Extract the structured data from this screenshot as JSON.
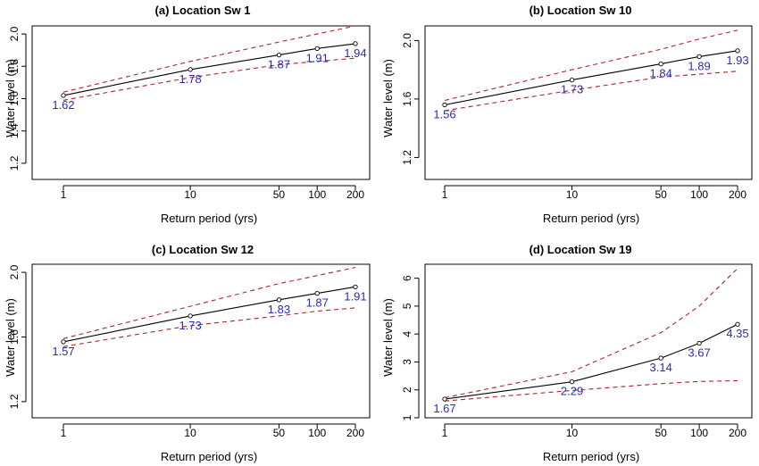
{
  "colors": {
    "main": "#000000",
    "ci": "#b22222",
    "labels": "#2b2bb8"
  },
  "chart_data": [
    {
      "type": "line",
      "title": "(a) Location Sw 1",
      "xlabel": "Return period (yrs)",
      "ylabel": "Water level (m)",
      "x_scale": "log",
      "x": [
        1,
        10,
        50,
        100,
        200
      ],
      "xticks": [
        "1",
        "10",
        "50",
        "100",
        "200"
      ],
      "yticks": [
        "1.2",
        "1.4",
        "1.6",
        "1.8",
        "2.0"
      ],
      "ylim": [
        1.1,
        2.05
      ],
      "series": [
        {
          "role": "estimate",
          "values": [
            1.62,
            1.78,
            1.87,
            1.91,
            1.94
          ]
        },
        {
          "role": "upper",
          "values": [
            1.64,
            1.83,
            1.95,
            2.0,
            2.05
          ]
        },
        {
          "role": "lower",
          "values": [
            1.59,
            1.73,
            1.81,
            1.83,
            1.85
          ]
        }
      ],
      "data_labels": [
        "1.62",
        "1.78",
        "1.87",
        "1.91",
        "1.94"
      ]
    },
    {
      "type": "line",
      "title": "(b) Location Sw 10",
      "xlabel": "Return period (yrs)",
      "ylabel": "Water level (m)",
      "x_scale": "log",
      "x": [
        1,
        10,
        50,
        100,
        200
      ],
      "xticks": [
        "1",
        "10",
        "50",
        "100",
        "200"
      ],
      "yticks": [
        "1.2",
        "1.6",
        "2.0"
      ],
      "ylim": [
        1.05,
        2.1
      ],
      "series": [
        {
          "role": "estimate",
          "values": [
            1.56,
            1.73,
            1.84,
            1.89,
            1.93
          ]
        },
        {
          "role": "upper",
          "values": [
            1.59,
            1.8,
            1.94,
            2.01,
            2.07
          ]
        },
        {
          "role": "lower",
          "values": [
            1.52,
            1.66,
            1.75,
            1.77,
            1.79
          ]
        }
      ],
      "data_labels": [
        "1.56",
        "1.73",
        "1.84",
        "1.89",
        "1.93"
      ]
    },
    {
      "type": "line",
      "title": "(c) Location Sw 12",
      "xlabel": "Return period (yrs)",
      "ylabel": "Water level (m)",
      "x_scale": "log",
      "x": [
        1,
        10,
        50,
        100,
        200
      ],
      "xticks": [
        "1",
        "10",
        "50",
        "100",
        "200"
      ],
      "yticks": [
        "1.2",
        "1.6",
        "2.0"
      ],
      "ylim": [
        1.1,
        2.05
      ],
      "series": [
        {
          "role": "estimate",
          "values": [
            1.57,
            1.73,
            1.83,
            1.87,
            1.91
          ]
        },
        {
          "role": "upper",
          "values": [
            1.59,
            1.79,
            1.93,
            1.98,
            2.03
          ]
        },
        {
          "role": "lower",
          "values": [
            1.54,
            1.67,
            1.73,
            1.76,
            1.78
          ]
        }
      ],
      "data_labels": [
        "1.57",
        "1.73",
        "1.83",
        "1.87",
        "1.91"
      ]
    },
    {
      "type": "line",
      "title": "(d) Location Sw 19",
      "xlabel": "Return period (yrs)",
      "ylabel": "Water level (m)",
      "x_scale": "log",
      "x": [
        1,
        10,
        50,
        100,
        200
      ],
      "xticks": [
        "1",
        "10",
        "50",
        "100",
        "200"
      ],
      "yticks": [
        "1",
        "2",
        "3",
        "4",
        "5",
        "6"
      ],
      "ylim": [
        1,
        6.5
      ],
      "series": [
        {
          "role": "estimate",
          "values": [
            1.67,
            2.29,
            3.14,
            3.67,
            4.35
          ]
        },
        {
          "role": "upper",
          "values": [
            1.72,
            2.65,
            4.05,
            5.0,
            6.35
          ]
        },
        {
          "role": "lower",
          "values": [
            1.6,
            1.98,
            2.22,
            2.3,
            2.33
          ]
        }
      ],
      "data_labels": [
        "1.67",
        "2.29",
        "3.14",
        "3.67",
        "4.35"
      ]
    }
  ]
}
